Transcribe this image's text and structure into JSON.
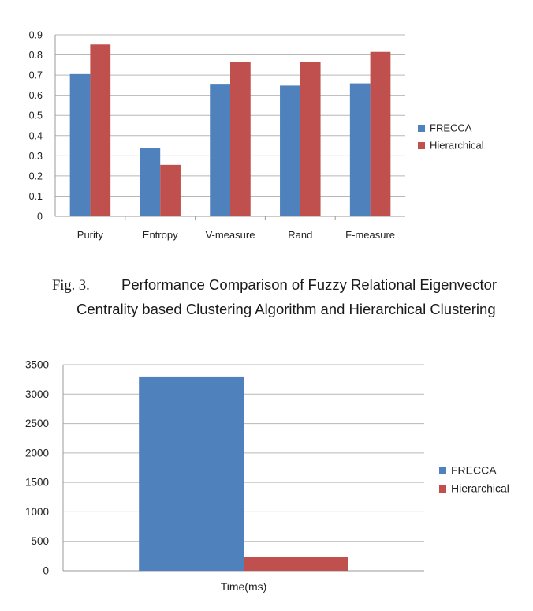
{
  "caption": {
    "label": "Fig. 3.",
    "line1": "Performance Comparison of Fuzzy Relational Eigenvector",
    "line2": "Centrality based Clustering Algorithm and Hierarchical Clustering"
  },
  "chart_data": [
    {
      "type": "bar",
      "categories": [
        "Purity",
        "Entropy",
        "V-measure",
        "Rand",
        "F-measure"
      ],
      "series": [
        {
          "name": "FRECCA",
          "values": [
            0.705,
            0.338,
            0.653,
            0.648,
            0.659
          ]
        },
        {
          "name": "Hierarchical",
          "values": [
            0.852,
            0.255,
            0.766,
            0.766,
            0.815
          ]
        }
      ],
      "ylim": [
        0,
        0.9
      ],
      "yticks": [
        "0",
        "0.1",
        "0.2",
        "0.3",
        "0.4",
        "0.5",
        "0.6",
        "0.7",
        "0.8",
        "0.9"
      ],
      "grid": true,
      "legend": "right",
      "colors": [
        "#4f81bd",
        "#c0504d"
      ]
    },
    {
      "type": "bar",
      "categories": [
        "Time(ms)"
      ],
      "series": [
        {
          "name": "FRECCA",
          "values": [
            3300
          ]
        },
        {
          "name": "Hierarchical",
          "values": [
            240
          ]
        }
      ],
      "ylim": [
        0,
        3500
      ],
      "yticks": [
        "0",
        "500",
        "1000",
        "1500",
        "2000",
        "2500",
        "3000",
        "3500"
      ],
      "grid": true,
      "legend": "right",
      "colors": [
        "#4f81bd",
        "#c0504d"
      ]
    }
  ]
}
